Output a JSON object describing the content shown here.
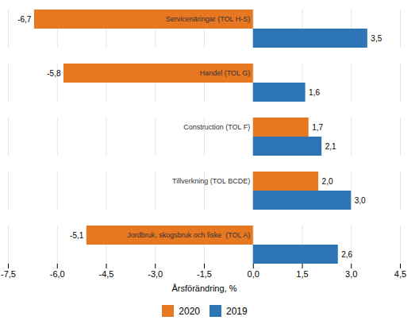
{
  "chart_data": {
    "type": "bar",
    "orientation": "horizontal",
    "categories": [
      "Jordbruk, skogsbruk och fiske  (TOL A)",
      "Tillverkning (TOL BCDE)",
      "Construction (TOL F)",
      "Handel (TOL G)",
      "Servicenäringar (TOL H-S)"
    ],
    "series": [
      {
        "name": "2020",
        "color": "#E87722",
        "values": [
          -5.1,
          2.0,
          1.7,
          -5.8,
          -6.7
        ],
        "value_labels": [
          "-5,1",
          "2,0",
          "1,7",
          "-5,8",
          "-6,7"
        ]
      },
      {
        "name": "2019",
        "color": "#2E75B6",
        "values": [
          2.6,
          3.0,
          2.1,
          1.6,
          3.5
        ],
        "value_labels": [
          "2,6",
          "3,0",
          "2,1",
          "1,6",
          "3,5"
        ]
      }
    ],
    "xlabel": "Årsförändring, %",
    "xlim": [
      -7.5,
      4.5
    ],
    "xticks": [
      {
        "value": -7.5,
        "label": "-7,5"
      },
      {
        "value": -6.0,
        "label": "-6,0"
      },
      {
        "value": -4.5,
        "label": "-4,5"
      },
      {
        "value": -3.0,
        "label": "-3,0"
      },
      {
        "value": -1.5,
        "label": "-1,5"
      },
      {
        "value": 0.0,
        "label": "0,0"
      },
      {
        "value": 1.5,
        "label": "1,5"
      },
      {
        "value": 3.0,
        "label": "3,0"
      },
      {
        "value": 4.5,
        "label": "4,5"
      }
    ],
    "grid": true,
    "legend": "bottom",
    "data_labels": true
  }
}
